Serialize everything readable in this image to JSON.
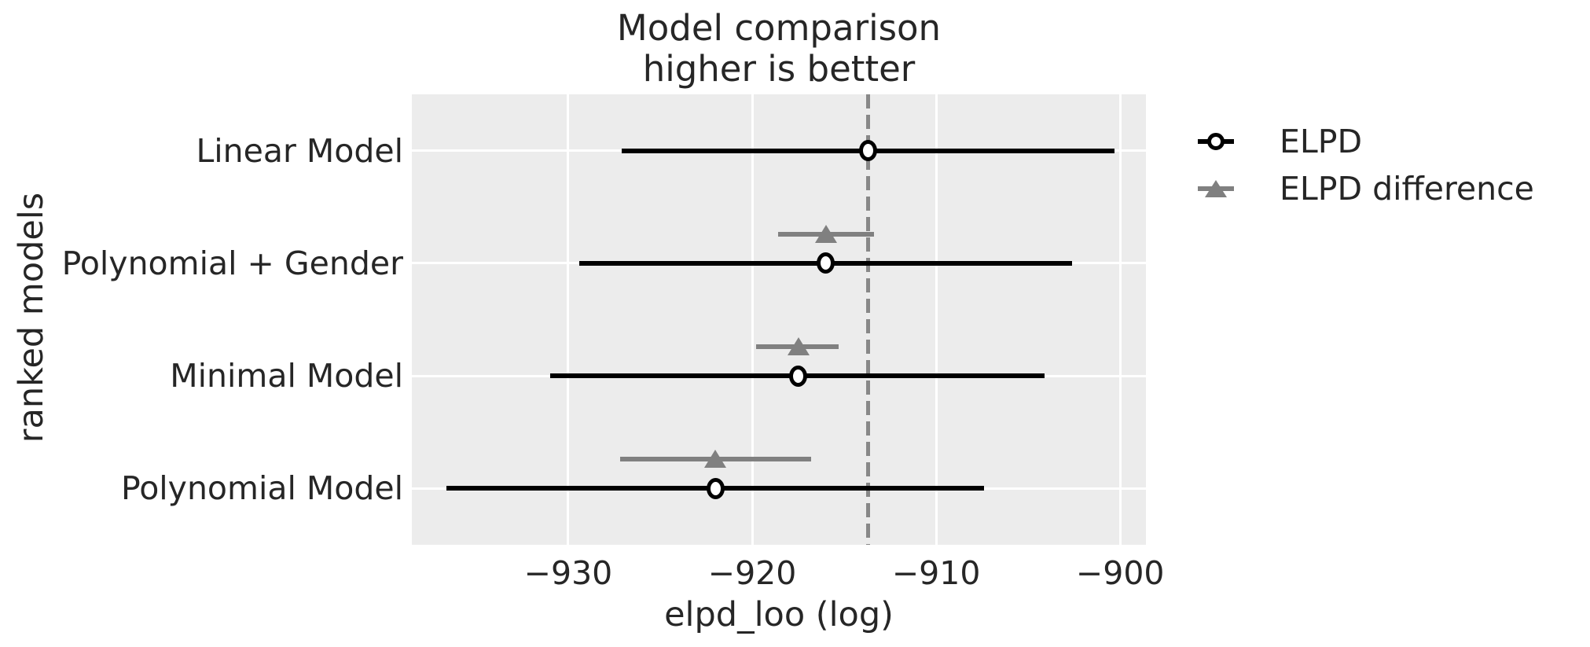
{
  "figure": {
    "title_line1": "Model comparison",
    "title_line2": "higher is better",
    "xlabel": "elpd_loo (log)",
    "ylabel": "ranked models"
  },
  "legend": {
    "items": [
      {
        "label": "ELPD",
        "marker": "open-circle",
        "color": "#000000"
      },
      {
        "label": "ELPD difference",
        "marker": "filled-triangle",
        "color": "#808080"
      }
    ]
  },
  "colors": {
    "plot_background": "#ececec",
    "gridline": "#ffffff",
    "elpd_series": "#000000",
    "elpd_difference_series": "#808080",
    "reference_line": "#888888",
    "text": "#262626"
  },
  "chart_data": {
    "type": "scatter",
    "subtype": "forest-plot-with-error-bars",
    "title": "Model comparison\nhigher is better",
    "xlabel": "elpd_loo (log)",
    "ylabel": "ranked models",
    "categories": [
      "Linear Model",
      "Polynomial + Gender",
      "Minimal Model",
      "Polynomial Model"
    ],
    "series": [
      {
        "name": "ELPD",
        "marker": "open-circle",
        "color": "#000000",
        "values": [
          -913.7,
          -916.0,
          -917.5,
          -922.0
        ],
        "ci_low": [
          -927.1,
          -929.4,
          -931.0,
          -936.6
        ],
        "ci_high": [
          -900.3,
          -902.6,
          -904.1,
          -907.4
        ]
      },
      {
        "name": "ELPD difference",
        "marker": "filled-triangle",
        "color": "#808080",
        "values": [
          null,
          -916.0,
          -917.5,
          -922.0
        ],
        "ci_low": [
          null,
          -918.6,
          -919.8,
          -927.2
        ],
        "ci_high": [
          null,
          -913.4,
          -915.3,
          -916.8
        ]
      }
    ],
    "reference_line_x": -913.7,
    "xlim": [
      -938.5,
      -898.6
    ],
    "xticks": [
      -930,
      -920,
      -910,
      -900
    ],
    "xtick_labels": [
      "−930",
      "−920",
      "−910",
      "−900"
    ],
    "grid": true,
    "legend_position": "outside-right-top"
  }
}
